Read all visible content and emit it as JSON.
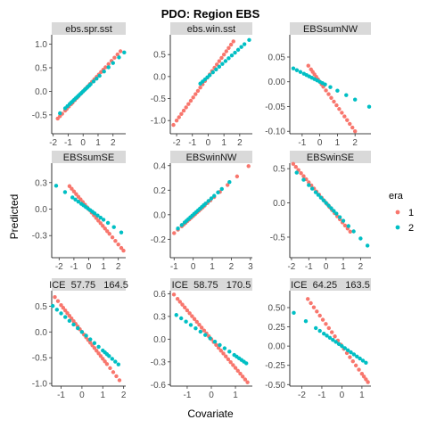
{
  "colors": {
    "era1": "#F8766D",
    "era2": "#00BFC4",
    "strip": "#d9d9d9"
  },
  "chart_data": {
    "type": "scatter",
    "title": "PDO: Region EBS",
    "xlabel": "Covariate",
    "ylabel": "Predicted",
    "grid": false,
    "legend": {
      "title": "era",
      "placement": "right",
      "entries": [
        "1",
        "2"
      ]
    },
    "panels": [
      {
        "label": "ebs.spr.sst",
        "xlim": [
          -2.1,
          2.85
        ],
        "ylim": [
          -0.9,
          1.2
        ],
        "xticks": [
          -2,
          -1,
          0,
          1,
          2
        ],
        "yticks": [
          -0.5,
          0.0,
          0.5,
          1.0
        ],
        "xtick_labels": [
          "-2",
          "-1",
          "0",
          "1",
          "2"
        ],
        "ytick_labels": [
          "-0.5",
          "0.0",
          "0.5",
          "1.0"
        ],
        "series": [
          {
            "era": "1",
            "slope": 0.34,
            "intercept": 0.0,
            "x": [
              -1.7,
              -1.55,
              -1.4,
              -1.2,
              -1.1,
              -0.95,
              -0.8,
              -0.7,
              -0.55,
              -0.4,
              -0.3,
              -0.15,
              0.0,
              0.15,
              0.3,
              0.45,
              0.6,
              0.75,
              0.9,
              1.05,
              1.2,
              1.35,
              1.5,
              1.7,
              1.9,
              2.1,
              2.3,
              2.5
            ]
          },
          {
            "era": "2",
            "slope": 0.3,
            "intercept": 0.0,
            "x": [
              -1.55,
              -1.2,
              -1.05,
              -0.9,
              -0.8,
              -0.7,
              -0.6,
              -0.5,
              -0.4,
              -0.3,
              -0.2,
              -0.1,
              0.0,
              0.1,
              0.2,
              0.3,
              0.4,
              0.5,
              0.7,
              0.9,
              1.1,
              1.4,
              1.7,
              2.0,
              2.4,
              2.75
            ]
          }
        ]
      },
      {
        "label": "ebs.win.sst",
        "xlim": [
          -2.4,
          2.8
        ],
        "ylim": [
          -1.3,
          0.95
        ],
        "xticks": [
          -2,
          -1,
          0,
          1,
          2
        ],
        "yticks": [
          -1.0,
          -0.5,
          0.0,
          0.5
        ],
        "xtick_labels": [
          "-2",
          "-1",
          "0",
          "1",
          "2"
        ],
        "ytick_labels": [
          "-1.0",
          "-0.5",
          "0.0",
          "0.5"
        ],
        "series": [
          {
            "era": "1",
            "slope": 0.5,
            "intercept": 0.0,
            "x": [
              -2.2,
              -2.0,
              -1.85,
              -1.7,
              -1.55,
              -1.4,
              -1.25,
              -1.1,
              -0.95,
              -0.8,
              -0.65,
              -0.5,
              -0.35,
              -0.2,
              -0.05,
              0.1,
              0.25,
              0.4,
              0.55,
              0.7,
              0.85,
              1.0,
              1.15,
              1.3,
              1.45,
              1.6
            ]
          },
          {
            "era": "2",
            "slope": 0.32,
            "intercept": 0.0,
            "x": [
              -0.5,
              -0.35,
              -0.2,
              -0.05,
              0.1,
              0.3,
              0.5,
              0.7,
              0.9,
              1.1,
              1.3,
              1.5,
              1.7,
              1.9,
              2.1,
              2.3,
              2.6
            ]
          }
        ]
      },
      {
        "label": "EBSsumNW",
        "xlim": [
          -1.7,
          2.9
        ],
        "ylim": [
          -0.105,
          0.095
        ],
        "xticks": [
          -1,
          0,
          1,
          2
        ],
        "yticks": [
          -0.1,
          -0.05,
          0.0,
          0.05
        ],
        "xtick_labels": [
          "-1",
          "0",
          "1",
          "2"
        ],
        "ytick_labels": [
          "-0.10",
          "-0.05",
          "0.00",
          "0.05"
        ],
        "series": [
          {
            "era": "1",
            "slope": -0.05,
            "intercept": 0.0,
            "x": [
              -0.65,
              -0.5,
              -0.4,
              -0.3,
              -0.2,
              -0.1,
              0.0,
              0.1,
              0.2,
              0.35,
              0.5,
              0.65,
              0.8,
              0.95,
              1.1,
              1.25,
              1.4,
              1.55,
              1.7,
              1.85,
              2.0
            ]
          },
          {
            "era": "2",
            "slope": -0.018,
            "intercept": 0.0,
            "x": [
              -1.5,
              -1.3,
              -1.1,
              -0.9,
              -0.75,
              -0.6,
              -0.45,
              -0.3,
              -0.15,
              0.0,
              0.15,
              0.3,
              0.6,
              1.0,
              1.5,
              2.0,
              2.8
            ]
          }
        ]
      },
      {
        "label": "EBSsumSE",
        "xlim": [
          -2.5,
          2.5
        ],
        "ylim": [
          -0.55,
          0.52
        ],
        "xticks": [
          -2,
          -1,
          0,
          1,
          2
        ],
        "yticks": [
          -0.3,
          0.0,
          0.3
        ],
        "xtick_labels": [
          "-2",
          "-1",
          "0",
          "1",
          "2"
        ],
        "ytick_labels": [
          "-0.3",
          "0.0",
          "0.3"
        ],
        "series": [
          {
            "era": "1",
            "slope": -0.2,
            "intercept": 0.0,
            "x": [
              -1.3,
              -1.15,
              -1.0,
              -0.85,
              -0.7,
              -0.55,
              -0.4,
              -0.25,
              -0.1,
              0.05,
              0.2,
              0.35,
              0.5,
              0.65,
              0.8,
              0.95,
              1.1,
              1.25,
              1.4,
              1.6,
              1.8,
              2.0,
              2.2,
              2.35
            ]
          },
          {
            "era": "2",
            "slope": -0.12,
            "intercept": 0.0,
            "x": [
              -2.2,
              -1.6,
              -1.1,
              -0.9,
              -0.7,
              -0.5,
              -0.35,
              -0.2,
              -0.05,
              0.1,
              0.25,
              0.4,
              0.6,
              0.8,
              1.0,
              1.3,
              1.7,
              2.2
            ]
          }
        ]
      },
      {
        "label": "EBSwinNW",
        "xlim": [
          -1.2,
          3.1
        ],
        "ylim": [
          -0.35,
          0.42
        ],
        "xticks": [
          -1,
          0,
          1,
          2,
          3
        ],
        "yticks": [
          -0.2,
          0.0,
          0.2,
          0.4
        ],
        "xtick_labels": [
          "-1",
          "0",
          "1",
          "2",
          "3"
        ],
        "ytick_labels": [
          "-0.2",
          "0.0",
          "0.2",
          "0.4"
        ],
        "series": [
          {
            "era": "1",
            "slope": 0.14,
            "intercept": -0.01,
            "x": [
              -1.0,
              -0.8,
              -0.6,
              -0.5,
              -0.4,
              -0.3,
              -0.2,
              -0.1,
              0.0,
              0.1,
              0.2,
              0.3,
              0.4,
              0.5,
              0.6,
              0.75,
              0.9,
              1.1,
              1.4,
              1.8,
              2.3,
              2.9
            ]
          },
          {
            "era": "2",
            "slope": 0.14,
            "intercept": 0.0,
            "x": [
              -0.8,
              -0.6,
              -0.45,
              -0.35,
              -0.25,
              -0.15,
              -0.05,
              0.05,
              0.15,
              0.25,
              0.35,
              0.45,
              0.55,
              0.65,
              0.8,
              0.95,
              1.1,
              1.3,
              1.5,
              1.9
            ]
          }
        ]
      },
      {
        "label": "EBSwinSE",
        "xlim": [
          -2.1,
          2.6
        ],
        "ylim": [
          -0.8,
          0.58
        ],
        "xticks": [
          -2,
          -1,
          0,
          1,
          2
        ],
        "yticks": [
          -0.5,
          0.0,
          0.5
        ],
        "xtick_labels": [
          "-2",
          "-1",
          "0",
          "1",
          "2"
        ],
        "ytick_labels": [
          "-0.5",
          "0.0",
          "0.5"
        ],
        "series": [
          {
            "era": "1",
            "slope": -0.3,
            "intercept": 0.0,
            "x": [
              -1.9,
              -1.75,
              -1.6,
              -1.45,
              -1.3,
              -1.15,
              -1.0,
              -0.85,
              -0.7,
              -0.55,
              -0.4,
              -0.25,
              -0.1,
              0.05,
              0.2,
              0.35,
              0.5,
              0.65,
              0.8,
              0.95,
              1.1,
              1.25,
              1.4
            ]
          },
          {
            "era": "2",
            "slope": -0.26,
            "intercept": 0.0,
            "x": [
              -1.7,
              -1.3,
              -1.0,
              -0.8,
              -0.6,
              -0.45,
              -0.3,
              -0.15,
              0.0,
              0.15,
              0.3,
              0.45,
              0.6,
              0.8,
              1.0,
              1.3,
              1.6,
              2.0,
              2.4
            ]
          }
        ]
      },
      {
        "label": "ICE  57.75   164.5",
        "xlim": [
          -1.45,
          2.1
        ],
        "ylim": [
          -1.05,
          0.8
        ],
        "xticks": [
          -1,
          0,
          1,
          2
        ],
        "yticks": [
          -1.0,
          -0.5,
          0.0,
          0.5
        ],
        "xtick_labels": [
          "-1",
          "0",
          "1",
          "2"
        ],
        "ytick_labels": [
          "-1.0",
          "-0.5",
          "0.0",
          "0.5"
        ],
        "series": [
          {
            "era": "1",
            "slope": -0.52,
            "intercept": 0.0,
            "x": [
              -1.3,
              -1.15,
              -1.0,
              -0.9,
              -0.8,
              -0.7,
              -0.6,
              -0.5,
              -0.4,
              -0.3,
              -0.2,
              -0.1,
              0.0,
              0.1,
              0.2,
              0.3,
              0.4,
              0.5,
              0.6,
              0.7,
              0.8,
              0.9,
              1.0,
              1.1,
              1.2,
              1.35,
              1.5,
              1.65,
              1.8
            ]
          },
          {
            "era": "2",
            "slope": -0.36,
            "intercept": 0.0,
            "x": [
              -1.4,
              -1.2,
              -1.0,
              -0.8,
              -0.6,
              -0.4,
              -0.2,
              0.0,
              0.2,
              0.4,
              0.6,
              0.8,
              1.0,
              1.1,
              1.2,
              1.3,
              1.45,
              1.6,
              1.75
            ]
          }
        ]
      },
      {
        "label": "ICE  58.75   170.5",
        "xlim": [
          -1.7,
          1.7
        ],
        "ylim": [
          -0.62,
          0.64
        ],
        "xticks": [
          -1,
          0,
          1
        ],
        "yticks": [
          -0.6,
          -0.3,
          0.0,
          0.3,
          0.6
        ],
        "xtick_labels": [
          "-1",
          "0",
          "1"
        ],
        "ytick_labels": [
          "-0.6",
          "-0.3",
          "0.0",
          "0.3",
          "0.6"
        ],
        "series": [
          {
            "era": "1",
            "slope": -0.38,
            "intercept": 0.0,
            "x": [
              -1.55,
              -1.4,
              -1.3,
              -1.2,
              -1.1,
              -1.0,
              -0.9,
              -0.8,
              -0.7,
              -0.6,
              -0.5,
              -0.4,
              -0.3,
              -0.2,
              -0.1,
              0.0,
              0.1,
              0.2,
              0.3,
              0.4,
              0.5,
              0.6,
              0.7,
              0.8,
              0.9,
              1.0,
              1.1,
              1.2,
              1.3,
              1.4,
              1.5
            ]
          },
          {
            "era": "2",
            "slope": -0.22,
            "intercept": 0.0,
            "x": [
              -1.45,
              -1.25,
              -1.05,
              -0.85,
              -0.65,
              -0.45,
              -0.25,
              -0.05,
              0.15,
              0.35,
              0.55,
              0.75,
              0.95,
              1.05,
              1.15,
              1.25,
              1.35,
              1.45
            ]
          }
        ]
      },
      {
        "label": "ICE  64.25   163.5",
        "xlim": [
          -2.6,
          1.45
        ],
        "ylim": [
          -0.52,
          0.72
        ],
        "xticks": [
          -2,
          -1,
          0,
          1
        ],
        "yticks": [
          -0.5,
          -0.25,
          0.0,
          0.25,
          0.5
        ],
        "xtick_labels": [
          "-2",
          "-1",
          "0",
          "1"
        ],
        "ytick_labels": [
          "-0.50",
          "-0.25",
          "0.00",
          "0.25",
          "0.50"
        ],
        "series": [
          {
            "era": "1",
            "slope": -0.36,
            "intercept": 0.0,
            "x": [
              -1.7,
              -1.55,
              -1.4,
              -1.25,
              -1.1,
              -0.95,
              -0.8,
              -0.65,
              -0.5,
              -0.35,
              -0.2,
              -0.05,
              0.1,
              0.25,
              0.4,
              0.55,
              0.7,
              0.85,
              1.0,
              1.1,
              1.2,
              1.3
            ]
          },
          {
            "era": "2",
            "slope": -0.18,
            "intercept": 0.0,
            "x": [
              -2.4,
              -1.8,
              -1.3,
              -1.1,
              -0.9,
              -0.75,
              -0.6,
              -0.45,
              -0.3,
              -0.15,
              0.0,
              0.15,
              0.3,
              0.45,
              0.6,
              0.75,
              0.9,
              1.05,
              1.2
            ]
          }
        ]
      }
    ]
  }
}
